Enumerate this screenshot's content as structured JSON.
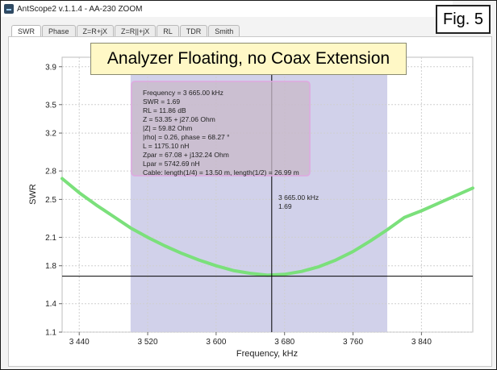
{
  "window": {
    "title": "AntScope2 v.1.1.4 - AA-230 ZOOM",
    "tabs": [
      {
        "label": "SWR",
        "active": true
      },
      {
        "label": "Phase"
      },
      {
        "label": "Z=R+jX"
      },
      {
        "label": "Z=R||+jX"
      },
      {
        "label": "RL"
      },
      {
        "label": "TDR"
      },
      {
        "label": "Smith"
      }
    ]
  },
  "figure_label": "Fig. 5",
  "banner": "Analyzer Floating, no Coax Extension",
  "info_box": {
    "lines": [
      "Frequency = 3 665.00 kHz",
      "SWR = 1.69",
      "RL = 11.86 dB",
      "Z = 53.35 + j27.06 Ohm",
      "|Z| = 59.82 Ohm",
      "|rho| = 0.26, phase = 68.27 °",
      "L = 1175.10 nH",
      "Zpar = 67.08 + j132.24 Ohm",
      "Lpar = 5742.69 nH",
      "Cable: length(1/4) = 13.50 m, length(1/2) = 26.99 m"
    ]
  },
  "cursor_label": {
    "frequency": "3 665.00 kHz",
    "swr": "1.69"
  },
  "colors": {
    "curve": "#7be07b",
    "band": "#c9c9e6",
    "info_fill": "#c8b8c8",
    "info_border": "#e0a8e0",
    "banner_fill": "#fff8c6"
  },
  "chart_data": {
    "type": "line",
    "xlabel": "Frequency, kHz",
    "ylabel": "SWR",
    "xlim": [
      3420,
      3900
    ],
    "ylim": [
      1.1,
      4.0
    ],
    "x_ticks": [
      3440,
      3520,
      3600,
      3680,
      3760,
      3840
    ],
    "x_tick_labels": [
      "3 440",
      "3 520",
      "3 600",
      "3 680",
      "3 760",
      "3 840"
    ],
    "y_ticks": [
      1.1,
      1.4,
      1.8,
      2.1,
      2.5,
      2.8,
      3.2,
      3.5,
      3.9
    ],
    "y_tick_labels": [
      "1.1",
      "1.4",
      "1.8",
      "2.1",
      "2.5",
      "2.8",
      "3.2",
      "3.5",
      "3.9"
    ],
    "band_range": [
      3500,
      3800
    ],
    "cursor": {
      "x": 3665,
      "y": 1.69
    },
    "grid": true,
    "series": [
      {
        "x": [
          3420,
          3440,
          3460,
          3480,
          3500,
          3520,
          3540,
          3560,
          3580,
          3600,
          3620,
          3640,
          3660,
          3680,
          3700,
          3720,
          3740,
          3760,
          3780,
          3800,
          3820,
          3840,
          3860,
          3880,
          3900
        ],
        "values": [
          2.72,
          2.57,
          2.44,
          2.32,
          2.2,
          2.1,
          2.01,
          1.93,
          1.86,
          1.8,
          1.75,
          1.72,
          1.7,
          1.71,
          1.74,
          1.79,
          1.86,
          1.95,
          2.06,
          2.18,
          2.31,
          2.38,
          2.46,
          2.54,
          2.62
        ]
      }
    ]
  }
}
